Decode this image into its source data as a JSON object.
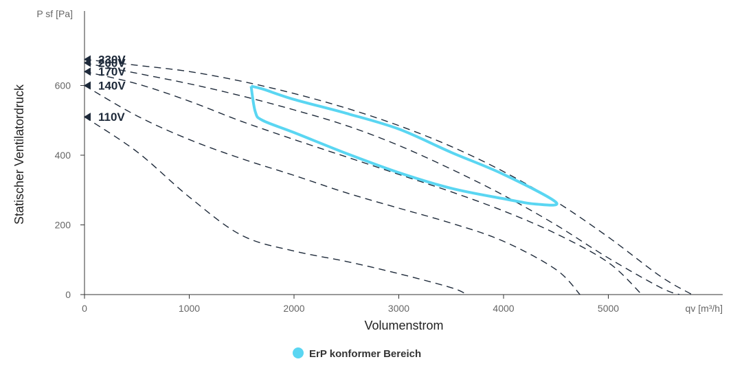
{
  "chart_data": {
    "type": "line",
    "xlabel": "Volumenstrom",
    "ylabel": "Statischer Ventilatordruck",
    "x_unit": "qv [m³/h]",
    "y_unit": "P sf [Pa]",
    "xlim": [
      0,
      6000
    ],
    "ylim": [
      0,
      800
    ],
    "xticks": [
      "0",
      "1000",
      "2000",
      "3000",
      "4000",
      "5000"
    ],
    "yticks": [
      "0",
      "200",
      "400",
      "600"
    ],
    "grid": false,
    "legend": "bottom-center",
    "curve_color": "#1e2a3a",
    "region_color": "#5ad6f2",
    "series": [
      {
        "name": "230V",
        "x": [
          0,
          500,
          1000,
          1500,
          2000,
          2500,
          3000,
          3500,
          4000,
          4500,
          5000,
          5500,
          5800
        ],
        "y": [
          675,
          658,
          640,
          612,
          577,
          535,
          485,
          425,
          353,
          267,
          165,
          52,
          0
        ]
      },
      {
        "name": "200V",
        "x": [
          0,
          500,
          1000,
          1500,
          2000,
          2500,
          3000,
          3500,
          4000,
          4500,
          5000,
          5500,
          5680
        ],
        "y": [
          665,
          635,
          605,
          570,
          530,
          485,
          428,
          360,
          285,
          200,
          105,
          20,
          0
        ]
      },
      {
        "name": "170V",
        "x": [
          0,
          500,
          1000,
          1500,
          2000,
          2500,
          3000,
          3500,
          4000,
          4500,
          5000,
          5320
        ],
        "y": [
          640,
          605,
          555,
          497,
          445,
          395,
          345,
          295,
          240,
          175,
          92,
          0
        ]
      },
      {
        "name": "140V",
        "x": [
          0,
          500,
          1000,
          1500,
          2000,
          2500,
          3000,
          3500,
          4000,
          4500,
          4730
        ],
        "y": [
          600,
          513,
          445,
          390,
          342,
          292,
          248,
          205,
          153,
          72,
          0
        ]
      },
      {
        "name": "110V",
        "x": [
          0,
          500,
          1000,
          1500,
          2000,
          2500,
          3000,
          3500,
          3650
        ],
        "y": [
          510,
          410,
          280,
          170,
          125,
          95,
          60,
          20,
          0
        ]
      }
    ],
    "region": {
      "name": "ErP konformer Bereich",
      "x": [
        1590,
        1700,
        2000,
        2500,
        3000,
        3500,
        4000,
        4500,
        4300,
        4000,
        3500,
        3000,
        2500,
        2000,
        1700,
        1630,
        1590
      ],
      "y": [
        598,
        590,
        560,
        520,
        475,
        408,
        345,
        265,
        260,
        275,
        305,
        350,
        405,
        465,
        500,
        525,
        598
      ]
    }
  }
}
